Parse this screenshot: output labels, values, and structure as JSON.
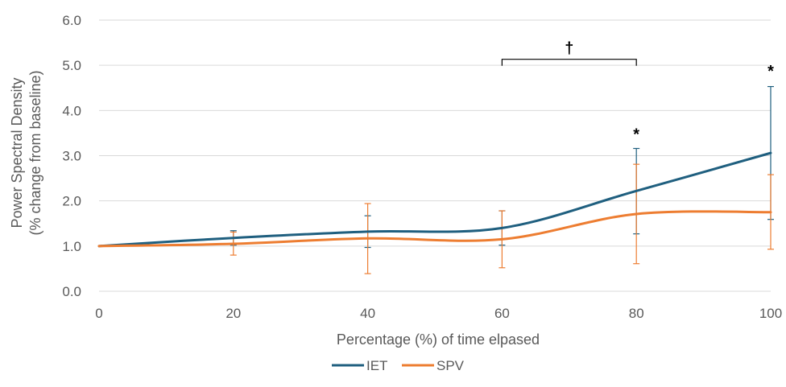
{
  "chart_data": {
    "type": "line",
    "xlabel": "Percentage (%) of time elpased",
    "ylabel": [
      "Power Spectral Density",
      "(% change from baseline)"
    ],
    "xlim": [
      0,
      100
    ],
    "ylim": [
      0,
      6
    ],
    "x_ticks": [
      "0",
      "20",
      "40",
      "60",
      "80",
      "100"
    ],
    "y_ticks": [
      "0.0",
      "1.0",
      "2.0",
      "3.0",
      "4.0",
      "5.0",
      "6.0"
    ],
    "x": [
      0,
      20,
      40,
      60,
      80,
      100
    ],
    "grid": "horizontal",
    "legend_position": "bottom",
    "series": [
      {
        "name": "IET",
        "color": "#1F5F7F",
        "values": [
          1.0,
          1.18,
          1.32,
          1.4,
          2.22,
          3.06
        ],
        "error_low": [
          null,
          1.02,
          0.97,
          1.02,
          1.27,
          1.59
        ],
        "error_high": [
          null,
          1.34,
          1.67,
          1.78,
          3.16,
          4.53
        ]
      },
      {
        "name": "SPV",
        "color": "#ED7D31",
        "values": [
          1.0,
          1.05,
          1.17,
          1.15,
          1.71,
          1.75
        ],
        "error_low": [
          null,
          0.8,
          0.39,
          0.52,
          0.61,
          0.93
        ],
        "error_high": [
          null,
          1.31,
          1.94,
          1.78,
          2.81,
          2.58
        ]
      }
    ],
    "annotations": [
      {
        "text": "*",
        "x": 80,
        "y": 3.5
      },
      {
        "text": "*",
        "x": 100,
        "y": 4.9
      },
      {
        "text": "†",
        "x": 70,
        "y": 5.4,
        "bracket": [
          60,
          80
        ]
      }
    ]
  }
}
